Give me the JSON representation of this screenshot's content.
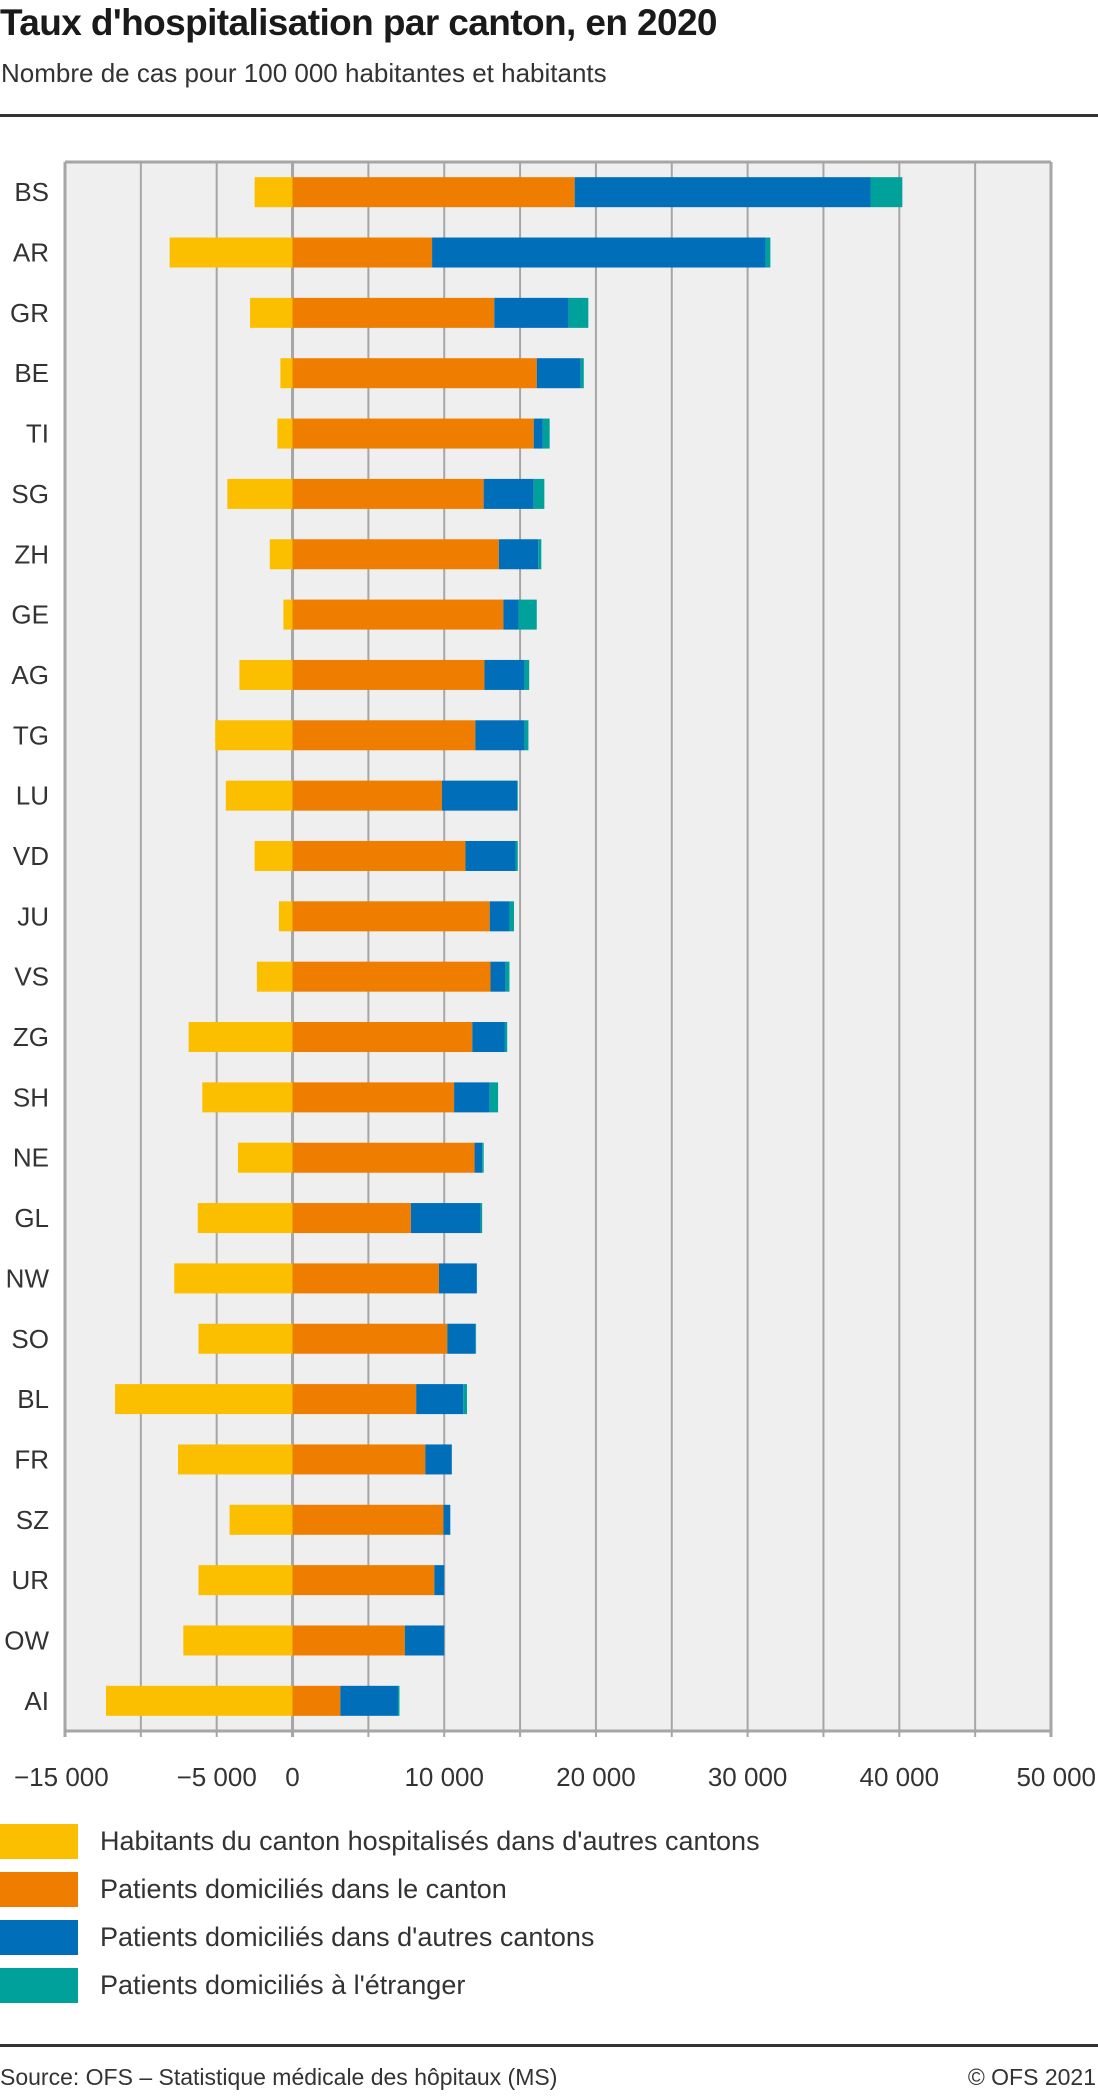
{
  "header": {
    "title": "Taux d'hospitalisation par canton, en 2020",
    "subtitle": "Nombre de cas pour 100 000 habitantes et habitants"
  },
  "colors": {
    "outbound": "#FBBF00",
    "resident": "#EF7D00",
    "other_canton": "#006EB9",
    "foreign": "#00A19A",
    "plot_background": "#EFEFEF",
    "grid": "#A6A6A6"
  },
  "chart_data": {
    "type": "bar",
    "orientation": "horizontal",
    "stacked": true,
    "title": "Taux d'hospitalisation par canton, en 2020",
    "subtitle": "Nombre de cas pour 100 000 habitantes et habitants",
    "xlabel": "",
    "ylabel": "",
    "xlim": [
      -15000,
      50000
    ],
    "grid_step": 5000,
    "grid": true,
    "x_tick_labels": [
      {
        "value": -15000,
        "label": "−15 000"
      },
      {
        "value": -5000,
        "label": "−5 000"
      },
      {
        "value": 0,
        "label": "0"
      },
      {
        "value": 10000,
        "label": "10 000"
      },
      {
        "value": 20000,
        "label": "20 000"
      },
      {
        "value": 30000,
        "label": "30 000"
      },
      {
        "value": 40000,
        "label": "40 000"
      },
      {
        "value": 50000,
        "label": "50 000"
      }
    ],
    "categories": [
      "BS",
      "AR",
      "GR",
      "BE",
      "TI",
      "SG",
      "ZH",
      "GE",
      "AG",
      "TG",
      "LU",
      "VD",
      "JU",
      "VS",
      "ZG",
      "SH",
      "NE",
      "GL",
      "NW",
      "SO",
      "BL",
      "FR",
      "SZ",
      "UR",
      "OW",
      "AI"
    ],
    "series": [
      {
        "key": "outbound",
        "name": "Habitants du canton hospitalisés dans d'autres cantons",
        "values": [
          -2500,
          -8100,
          -2800,
          -800,
          -1000,
          -4300,
          -1500,
          -600,
          -3500,
          -5100,
          -4400,
          -2500,
          -900,
          -2350,
          -6850,
          -5950,
          -3600,
          -6250,
          -7800,
          -6200,
          -11700,
          -7550,
          -4150,
          -6200,
          -7200,
          -12300
        ]
      },
      {
        "key": "resident",
        "name": "Patients domiciliés dans le canton",
        "values": [
          18600,
          9200,
          13300,
          16100,
          15900,
          12600,
          13600,
          13900,
          12650,
          12050,
          9850,
          11400,
          13000,
          13050,
          11850,
          10650,
          12000,
          7800,
          9650,
          10200,
          8150,
          8750,
          9950,
          9350,
          7400,
          3150
        ]
      },
      {
        "key": "other_canton",
        "name": "Patients domiciliés dans d'autres cantons",
        "values": [
          19500,
          22000,
          4900,
          2900,
          600,
          3300,
          2600,
          1000,
          2650,
          3250,
          4950,
          3300,
          1300,
          1000,
          2150,
          2350,
          500,
          4600,
          2500,
          1850,
          3100,
          1750,
          450,
          650,
          2600,
          3800
        ]
      },
      {
        "key": "foreign",
        "name": "Patients domiciliés à l'étranger",
        "values": [
          2100,
          300,
          1300,
          200,
          450,
          700,
          200,
          1200,
          300,
          250,
          50,
          150,
          300,
          250,
          150,
          550,
          100,
          100,
          0,
          50,
          250,
          0,
          0,
          0,
          0,
          100
        ]
      }
    ],
    "legend_position": "bottom"
  },
  "legend": {
    "items": [
      {
        "label": "Habitants du canton hospitalisés dans d'autres cantons",
        "color": "#FBBF00"
      },
      {
        "label": "Patients domiciliés dans le canton",
        "color": "#EF7D00"
      },
      {
        "label": "Patients domiciliés dans d'autres cantons",
        "color": "#006EB9"
      },
      {
        "label": "Patients domiciliés à l'étranger",
        "color": "#00A19A"
      }
    ]
  },
  "footer": {
    "source": "Source: OFS – Statistique médicale des hôpitaux (MS)",
    "copyright": "© OFS 2021"
  }
}
